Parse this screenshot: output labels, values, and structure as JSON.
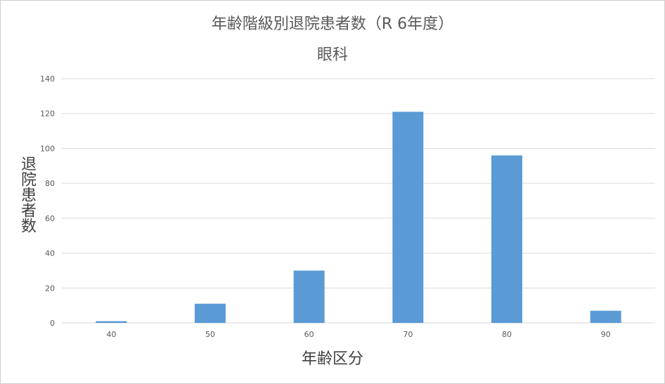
{
  "chart_data": {
    "type": "bar",
    "title": "年齢階級別退院患者数（R 6年度）",
    "subtitle": "眼科",
    "xlabel": "年齢区分",
    "ylabel": "退院患者数",
    "categories": [
      "40",
      "50",
      "60",
      "70",
      "80",
      "90"
    ],
    "values": [
      1,
      11,
      30,
      121,
      96,
      7
    ],
    "ylim": [
      0,
      140
    ],
    "yticks": [
      0,
      20,
      40,
      60,
      80,
      100,
      120,
      140
    ],
    "grid": true,
    "legend": "none",
    "bar_color": "#5b9bd5",
    "grid_color": "#d9d9d9"
  }
}
